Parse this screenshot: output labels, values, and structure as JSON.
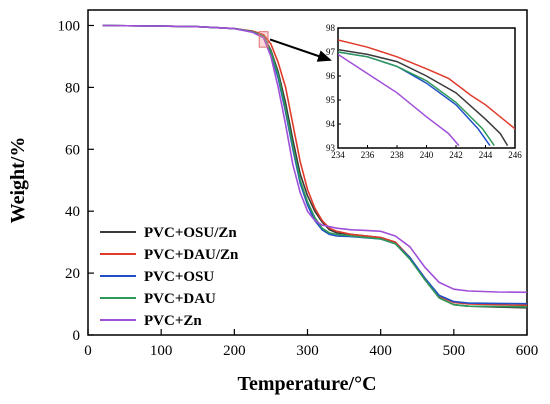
{
  "chart_data": [
    {
      "type": "line",
      "xlabel": "Temperature/°C",
      "ylabel": "Weight/%",
      "xlim": [
        0,
        600
      ],
      "ylim": [
        0,
        105
      ],
      "x_ticks": [
        "0",
        "100",
        "200",
        "300",
        "400",
        "500",
        "600"
      ],
      "y_ticks": [
        "0",
        "20",
        "40",
        "60",
        "80",
        "100"
      ],
      "grid": false,
      "legend_position": "bottom-left",
      "series": [
        {
          "name": "PVC+OSU/Zn",
          "color": "#3a3a3a",
          "points": [
            [
              20,
              100
            ],
            [
              100,
              99.8
            ],
            [
              150,
              99.6
            ],
            [
              200,
              99
            ],
            [
              225,
              98
            ],
            [
              240,
              96.5
            ],
            [
              250,
              92
            ],
            [
              260,
              85
            ],
            [
              270,
              75
            ],
            [
              280,
              63
            ],
            [
              290,
              52
            ],
            [
              300,
              45
            ],
            [
              310,
              40
            ],
            [
              320,
              36.5
            ],
            [
              330,
              34
            ],
            [
              340,
              33
            ],
            [
              360,
              32.5
            ],
            [
              400,
              31.5
            ],
            [
              420,
              30
            ],
            [
              440,
              25
            ],
            [
              460,
              18
            ],
            [
              480,
              12
            ],
            [
              500,
              9.8
            ],
            [
              520,
              9.3
            ],
            [
              560,
              9
            ],
            [
              600,
              8.8
            ]
          ]
        },
        {
          "name": "PVC+DAU/Zn",
          "color": "#e03a2a",
          "points": [
            [
              20,
              100
            ],
            [
              100,
              99.8
            ],
            [
              150,
              99.6
            ],
            [
              200,
              99
            ],
            [
              225,
              98.2
            ],
            [
              240,
              97
            ],
            [
              250,
              94
            ],
            [
              260,
              88
            ],
            [
              270,
              80
            ],
            [
              280,
              68
            ],
            [
              290,
              56
            ],
            [
              300,
              47
            ],
            [
              310,
              41
            ],
            [
              320,
              37
            ],
            [
              330,
              34.5
            ],
            [
              340,
              33.5
            ],
            [
              360,
              32.5
            ],
            [
              400,
              31.5
            ],
            [
              420,
              30
            ],
            [
              440,
              25
            ],
            [
              460,
              18.5
            ],
            [
              480,
              12.5
            ],
            [
              500,
              10.5
            ],
            [
              520,
              10
            ],
            [
              560,
              9.8
            ],
            [
              600,
              9.6
            ]
          ]
        },
        {
          "name": "PVC+OSU",
          "color": "#2050c8",
          "points": [
            [
              20,
              100
            ],
            [
              100,
              99.8
            ],
            [
              150,
              99.6
            ],
            [
              200,
              99
            ],
            [
              225,
              98
            ],
            [
              240,
              96.3
            ],
            [
              250,
              91
            ],
            [
              260,
              83
            ],
            [
              270,
              72
            ],
            [
              280,
              60
            ],
            [
              290,
              49
            ],
            [
              300,
              42
            ],
            [
              310,
              37
            ],
            [
              320,
              34
            ],
            [
              330,
              32.5
            ],
            [
              340,
              32
            ],
            [
              360,
              31.8
            ],
            [
              400,
              31
            ],
            [
              420,
              29.5
            ],
            [
              440,
              25
            ],
            [
              460,
              18.5
            ],
            [
              480,
              12.8
            ],
            [
              500,
              10.8
            ],
            [
              520,
              10.3
            ],
            [
              560,
              10.2
            ],
            [
              600,
              10.1
            ]
          ]
        },
        {
          "name": "PVC+DAU",
          "color": "#2e9a5a",
          "points": [
            [
              20,
              100
            ],
            [
              100,
              99.8
            ],
            [
              150,
              99.6
            ],
            [
              200,
              99
            ],
            [
              225,
              98
            ],
            [
              240,
              96.5
            ],
            [
              250,
              91.5
            ],
            [
              260,
              84
            ],
            [
              270,
              73
            ],
            [
              280,
              61
            ],
            [
              290,
              50
            ],
            [
              300,
              43
            ],
            [
              310,
              38
            ],
            [
              320,
              34.5
            ],
            [
              330,
              33
            ],
            [
              340,
              32.5
            ],
            [
              360,
              32
            ],
            [
              400,
              31
            ],
            [
              420,
              29.5
            ],
            [
              440,
              24.5
            ],
            [
              460,
              18
            ],
            [
              480,
              12
            ],
            [
              500,
              9.8
            ],
            [
              520,
              9.3
            ],
            [
              560,
              9.2
            ],
            [
              600,
              9.1
            ]
          ]
        },
        {
          "name": "PVC+Zn",
          "color": "#a050d8",
          "points": [
            [
              20,
              100
            ],
            [
              100,
              99.8
            ],
            [
              150,
              99.6
            ],
            [
              200,
              99
            ],
            [
              225,
              97.8
            ],
            [
              240,
              96
            ],
            [
              250,
              90
            ],
            [
              260,
              80
            ],
            [
              270,
              68
            ],
            [
              280,
              55
            ],
            [
              290,
              46
            ],
            [
              300,
              40
            ],
            [
              310,
              37
            ],
            [
              320,
              35.5
            ],
            [
              330,
              35
            ],
            [
              340,
              34.5
            ],
            [
              360,
              34
            ],
            [
              380,
              33.8
            ],
            [
              400,
              33.5
            ],
            [
              420,
              32
            ],
            [
              440,
              28.5
            ],
            [
              460,
              22
            ],
            [
              480,
              17
            ],
            [
              500,
              14.8
            ],
            [
              520,
              14.2
            ],
            [
              560,
              13.9
            ],
            [
              600,
              13.8
            ]
          ]
        }
      ]
    },
    {
      "type": "line",
      "role": "inset",
      "xlim": [
        234,
        246
      ],
      "ylim": [
        93,
        98
      ],
      "x_ticks": [
        "234",
        "236",
        "238",
        "240",
        "242",
        "244",
        "246"
      ],
      "y_ticks": [
        "93",
        "94",
        "95",
        "96",
        "97",
        "98"
      ],
      "series": [
        {
          "name": "PVC+OSU/Zn",
          "color": "#3a3a3a",
          "points": [
            [
              234,
              97.1
            ],
            [
              236,
              96.9
            ],
            [
              238,
              96.6
            ],
            [
              240,
              96.0
            ],
            [
              242,
              95.3
            ],
            [
              244,
              94.2
            ],
            [
              245,
              93.6
            ],
            [
              245.5,
              93.1
            ]
          ]
        },
        {
          "name": "PVC+DAU/Zn",
          "color": "#e03a2a",
          "points": [
            [
              234,
              97.5
            ],
            [
              236,
              97.2
            ],
            [
              238,
              96.8
            ],
            [
              240,
              96.3
            ],
            [
              241.5,
              95.9
            ],
            [
              243,
              95.2
            ],
            [
              244,
              94.8
            ],
            [
              246,
              93.8
            ]
          ]
        },
        {
          "name": "PVC+OSU",
          "color": "#2050c8",
          "points": [
            [
              234,
              97.0
            ],
            [
              236,
              96.8
            ],
            [
              238,
              96.4
            ],
            [
              240,
              95.7
            ],
            [
              242,
              94.8
            ],
            [
              243.5,
              93.8
            ],
            [
              244.3,
              93.1
            ]
          ]
        },
        {
          "name": "PVC+DAU",
          "color": "#2e9a5a",
          "points": [
            [
              234,
              97.0
            ],
            [
              236,
              96.8
            ],
            [
              238,
              96.4
            ],
            [
              240,
              95.8
            ],
            [
              242,
              94.9
            ],
            [
              243.8,
              93.8
            ],
            [
              244.6,
              93.1
            ]
          ]
        },
        {
          "name": "PVC+Zn",
          "color": "#a050d8",
          "points": [
            [
              234,
              96.9
            ],
            [
              236,
              96.1
            ],
            [
              238,
              95.3
            ],
            [
              240,
              94.3
            ],
            [
              241.5,
              93.6
            ],
            [
              242.2,
              93.1
            ]
          ]
        }
      ]
    }
  ]
}
